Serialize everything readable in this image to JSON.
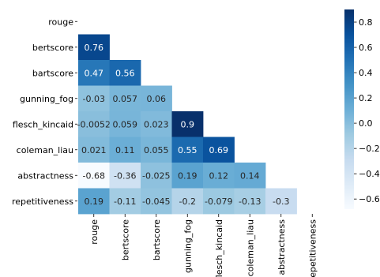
{
  "chart_data": {
    "type": "heatmap",
    "title": "",
    "xlabel": "",
    "ylabel": "",
    "mask": "upper-triangle-including-diagonal",
    "colormap": "Blues",
    "colorbar": {
      "range": [
        -0.68,
        0.9
      ],
      "ticks": [
        0.8,
        0.6,
        0.4,
        0.2,
        0.0,
        -0.2,
        -0.4,
        -0.6
      ],
      "tick_labels": [
        "0.8",
        "0.6",
        "0.4",
        "0.2",
        "0.0",
        "−0.2",
        "−0.4",
        "−0.6"
      ]
    },
    "row_labels": [
      "rouge",
      "bertscore",
      "bartscore",
      "gunning_fog",
      "flesch_kincaid",
      "coleman_liau",
      "abstractness",
      "repetitiveness"
    ],
    "col_labels": [
      "rouge",
      "bertscore",
      "bartscore",
      "gunning_fog",
      "flesch_kincaid",
      "coleman_liau",
      "abstractness",
      "repetitiveness"
    ],
    "cells": [
      {
        "row": 1,
        "col": 0,
        "value": 0.76,
        "label": "0.76"
      },
      {
        "row": 2,
        "col": 0,
        "value": 0.47,
        "label": "0.47"
      },
      {
        "row": 2,
        "col": 1,
        "value": 0.56,
        "label": "0.56"
      },
      {
        "row": 3,
        "col": 0,
        "value": -0.03,
        "label": "-0.03"
      },
      {
        "row": 3,
        "col": 1,
        "value": 0.057,
        "label": "0.057"
      },
      {
        "row": 3,
        "col": 2,
        "value": 0.06,
        "label": "0.06"
      },
      {
        "row": 4,
        "col": 0,
        "value": -0.0052,
        "label": "-0.0052"
      },
      {
        "row": 4,
        "col": 1,
        "value": 0.059,
        "label": "0.059"
      },
      {
        "row": 4,
        "col": 2,
        "value": 0.023,
        "label": "0.023"
      },
      {
        "row": 4,
        "col": 3,
        "value": 0.9,
        "label": "0.9"
      },
      {
        "row": 5,
        "col": 0,
        "value": 0.021,
        "label": "0.021"
      },
      {
        "row": 5,
        "col": 1,
        "value": 0.11,
        "label": "0.11"
      },
      {
        "row": 5,
        "col": 2,
        "value": 0.055,
        "label": "0.055"
      },
      {
        "row": 5,
        "col": 3,
        "value": 0.55,
        "label": "0.55"
      },
      {
        "row": 5,
        "col": 4,
        "value": 0.69,
        "label": "0.69"
      },
      {
        "row": 6,
        "col": 0,
        "value": -0.68,
        "label": "-0.68"
      },
      {
        "row": 6,
        "col": 1,
        "value": -0.36,
        "label": "-0.36"
      },
      {
        "row": 6,
        "col": 2,
        "value": -0.025,
        "label": "-0.025"
      },
      {
        "row": 6,
        "col": 3,
        "value": 0.19,
        "label": "0.19"
      },
      {
        "row": 6,
        "col": 4,
        "value": 0.12,
        "label": "0.12"
      },
      {
        "row": 6,
        "col": 5,
        "value": 0.14,
        "label": "0.14"
      },
      {
        "row": 7,
        "col": 0,
        "value": 0.19,
        "label": "0.19"
      },
      {
        "row": 7,
        "col": 1,
        "value": -0.11,
        "label": "-0.11"
      },
      {
        "row": 7,
        "col": 2,
        "value": -0.045,
        "label": "-0.045"
      },
      {
        "row": 7,
        "col": 3,
        "value": -0.2,
        "label": "-0.2"
      },
      {
        "row": 7,
        "col": 4,
        "value": -0.079,
        "label": "-0.079"
      },
      {
        "row": 7,
        "col": 5,
        "value": -0.13,
        "label": "-0.13"
      },
      {
        "row": 7,
        "col": 6,
        "value": -0.3,
        "label": "-0.3"
      }
    ]
  }
}
